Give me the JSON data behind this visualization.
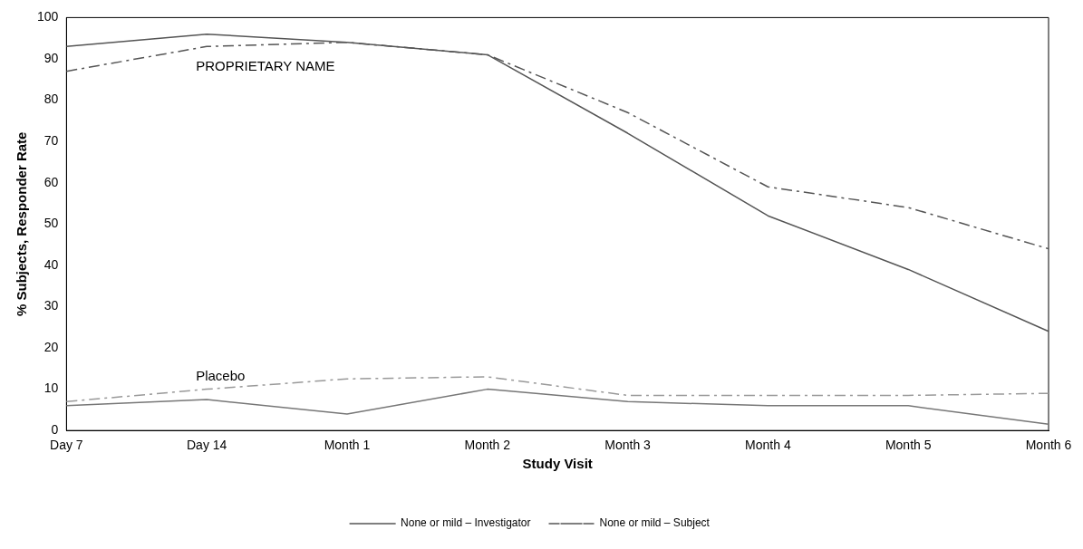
{
  "chart_data": {
    "type": "line",
    "xlabel": "Study Visit",
    "ylabel": "% Subjects, Responder Rate",
    "categories": [
      "Day 7",
      "Day 14",
      "Month 1",
      "Month 2",
      "Month 3",
      "Month 4",
      "Month 5",
      "Month 6"
    ],
    "series": [
      {
        "name": "None or mild – Investigator",
        "color": "#555555",
        "line_style": "solid",
        "values": [
          93,
          96,
          94,
          91,
          72,
          52,
          39,
          24
        ]
      },
      {
        "name": "None or mild – Subject",
        "color": "#555555",
        "line_style": "dashed",
        "values": [
          87,
          93,
          94,
          91,
          77,
          59,
          54,
          44
        ]
      },
      {
        "color": "#777777",
        "line_style": "solid",
        "values": [
          6,
          7.5,
          4,
          10,
          7,
          6,
          6,
          1.5
        ]
      },
      {
        "color": "#999999",
        "line_style": "dashed",
        "values": [
          7,
          10,
          12.5,
          13,
          8.5,
          8.5,
          8.5,
          9
        ]
      }
    ],
    "ylim": [
      0,
      100
    ],
    "yticks": [
      0,
      10,
      20,
      30,
      40,
      50,
      60,
      70,
      80,
      90,
      100
    ],
    "grid": false,
    "legend": "bottom",
    "marker": "none",
    "annotations": [
      "PROPRIETARY NAME",
      "Placebo"
    ]
  }
}
